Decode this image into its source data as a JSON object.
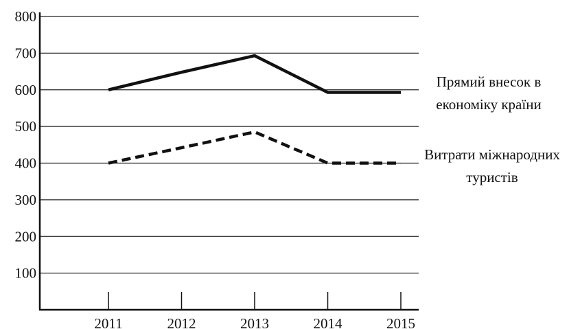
{
  "chart_data": {
    "type": "line",
    "title": "",
    "xlabel": "",
    "ylabel": "",
    "x": [
      "2011",
      "2012",
      "2013",
      "2014",
      "2015"
    ],
    "y_ticks": [
      "100",
      "200",
      "300",
      "400",
      "500",
      "600",
      "700",
      "800"
    ],
    "ylim": [
      0,
      800
    ],
    "grid": true,
    "series": [
      {
        "name": "Прямий внесок в економіку країни",
        "name_lines": [
          "Прямий внесок в",
          "економіку країни"
        ],
        "style": "solid",
        "color": "#111111",
        "values": [
          600,
          648,
          693,
          593,
          593
        ]
      },
      {
        "name": "Витрати міжнародних туристів",
        "name_lines": [
          "Витрати міжнародних",
          "туристів"
        ],
        "style": "dashed",
        "color": "#111111",
        "values": [
          400,
          442,
          485,
          400,
          400
        ]
      }
    ]
  }
}
